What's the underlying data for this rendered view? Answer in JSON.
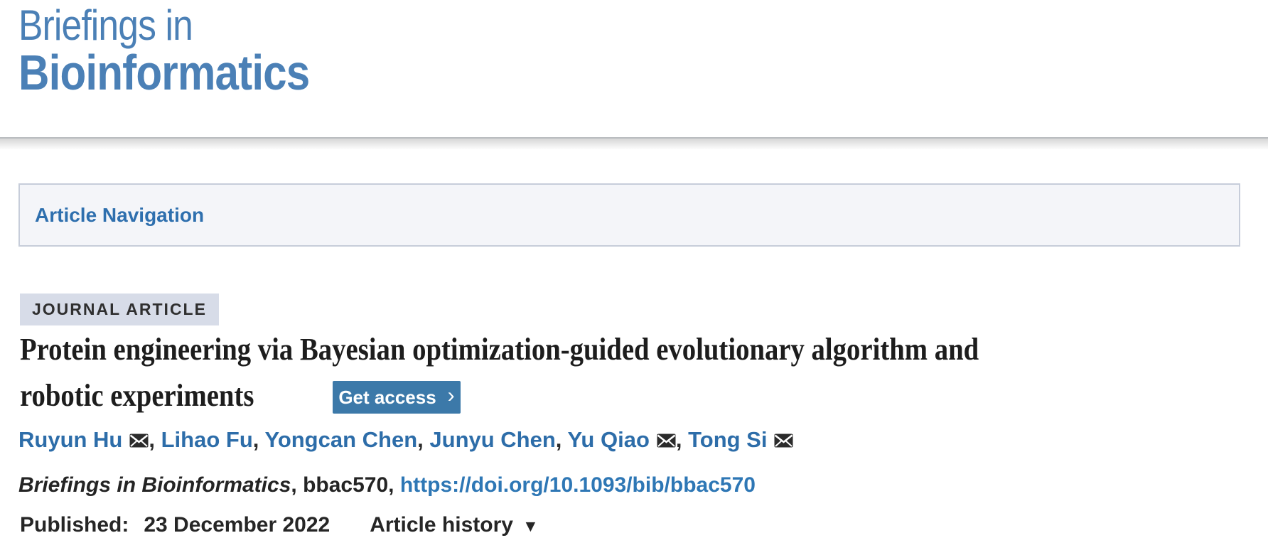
{
  "journal": {
    "name_line1": "Briefings in",
    "name_line2": "Bioinformatics"
  },
  "nav": {
    "label": "Article Navigation"
  },
  "article": {
    "type_badge": "JOURNAL ARTICLE",
    "title_line1": "Protein engineering via Bayesian optimization-guided evolutionary algorithm and",
    "title_line2": "robotic experiments",
    "get_access_label": "Get access",
    "get_access_chevron": "›",
    "authors": [
      {
        "name": "Ruyun Hu",
        "envelope": true
      },
      {
        "name": "Lihao Fu",
        "envelope": false
      },
      {
        "name": "Yongcan Chen",
        "envelope": false
      },
      {
        "name": "Junyu Chen",
        "envelope": false
      },
      {
        "name": "Yu Qiao",
        "envelope": true
      },
      {
        "name": "Tong Si",
        "envelope": true
      }
    ],
    "citation": {
      "journal_italic": "Briefings in Bioinformatics",
      "separator1": ", ",
      "article_id": "bbac570",
      "separator2": ", ",
      "doi_link": "https://doi.org/10.1093/bib/bbac570"
    },
    "published_label": "Published:",
    "published_date": "23 December 2022",
    "article_history_label": "Article history",
    "article_history_arrow": "▼"
  },
  "icons": {
    "envelope": "envelope-icon",
    "chevron_right": "chevron-right-icon",
    "dropdown_triangle": "triangle-down-icon"
  },
  "colors": {
    "logo_blue": "#4b80b6",
    "nav_link_blue": "#2e6fae",
    "author_link_blue": "#2d6da9",
    "doi_link_blue": "#2e77b5",
    "button_blue": "#3c79a9",
    "badge_background": "#d7dce8",
    "nav_background": "#f4f5f9",
    "nav_border": "#c7cdda",
    "dark_text": "#262626"
  }
}
